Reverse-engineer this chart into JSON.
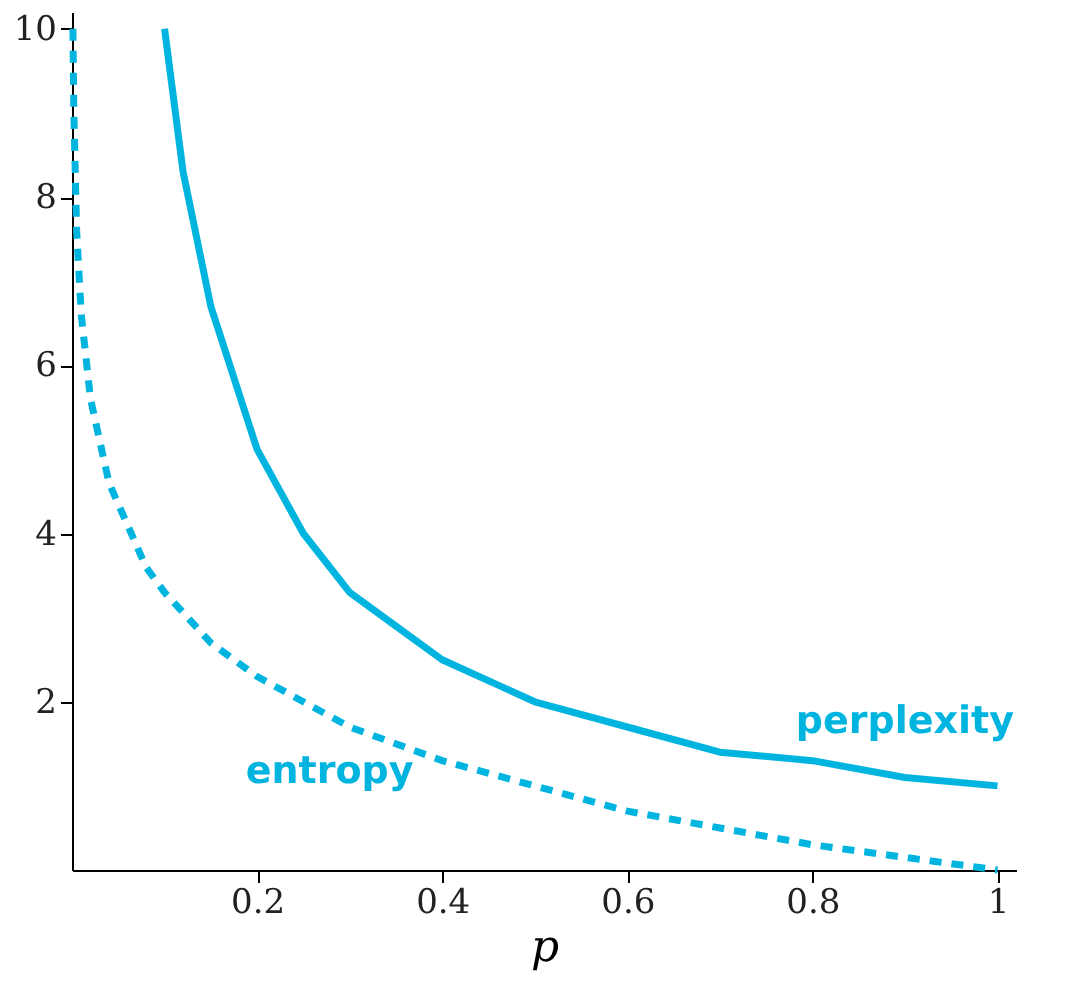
{
  "chart_data": {
    "type": "line",
    "xlabel": "p",
    "xlim": [
      0,
      1.02
    ],
    "ylim": [
      0,
      10.2
    ],
    "xticks": [
      0.2,
      0.4,
      0.6,
      0.8,
      1
    ],
    "yticks": [
      2,
      4,
      6,
      8,
      10
    ],
    "grid": false,
    "marker": "none",
    "series": [
      {
        "name": "perplexity",
        "color": "#00b4e0",
        "line_style": "solid",
        "x": [
          0.1,
          0.12,
          0.15,
          0.2,
          0.25,
          0.3,
          0.35,
          0.4,
          0.5,
          0.6,
          0.7,
          0.8,
          0.9,
          1
        ],
        "values": [
          10,
          8.3,
          6.7,
          5,
          4,
          3.3,
          2.9,
          2.5,
          2,
          1.7,
          1.4,
          1.3,
          1.1,
          1
        ]
      },
      {
        "name": "entropy",
        "color": "#00b4e0",
        "line_style": "dashed",
        "x": [
          0.001,
          0.002,
          0.005,
          0.01,
          0.02,
          0.04,
          0.06,
          0.08,
          0.1,
          0.15,
          0.2,
          0.3,
          0.4,
          0.5,
          0.6,
          0.7,
          0.8,
          0.9,
          1
        ],
        "values": [
          10,
          9,
          7.6,
          6.6,
          5.6,
          4.6,
          4.1,
          3.6,
          3.3,
          2.7,
          2.3,
          1.7,
          1.3,
          1,
          0.7,
          0.5,
          0.3,
          0.15,
          0
        ]
      }
    ]
  }
}
